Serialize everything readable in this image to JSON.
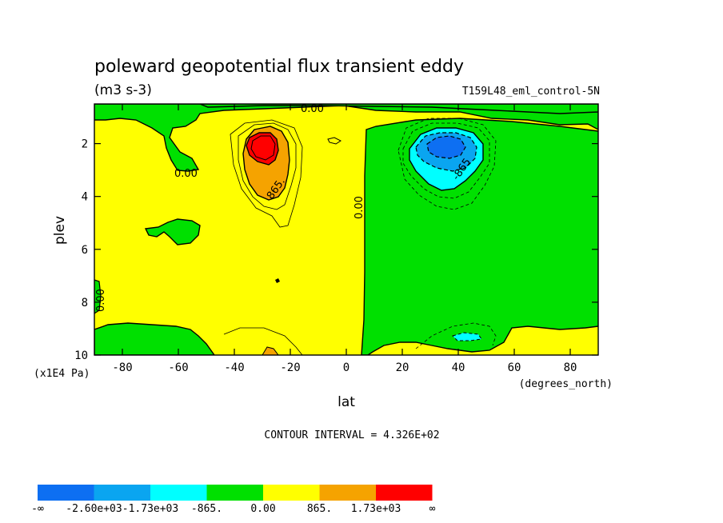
{
  "chart_data": {
    "type": "contour",
    "title": "poleward geopotential flux transient eddy",
    "units": "(m3 s-3)",
    "dataset": "T159L48_eml_control-5N",
    "xlabel": "lat",
    "x_units": "(degrees_north)",
    "ylabel": "plev",
    "y_units": "(x1E4 Pa)",
    "xlim": [
      -90,
      90
    ],
    "ylim": [
      10,
      0.5
    ],
    "x_ticks": [
      "-80",
      "-60",
      "-40",
      "-20",
      "0",
      "20",
      "40",
      "60",
      "80"
    ],
    "x_tick_values": [
      -80,
      -60,
      -40,
      -20,
      0,
      20,
      40,
      60,
      80
    ],
    "y_ticks": [
      "2",
      "4",
      "6",
      "8",
      "10"
    ],
    "y_tick_values": [
      2,
      4,
      6,
      8,
      10
    ],
    "contour_interval": "CONTOUR INTERVAL = 4.326E+02",
    "contour_labels": [
      "0.00",
      "0.00",
      "0.00",
      "0.00",
      "865.",
      "-865"
    ],
    "features": [
      {
        "sign": "positive",
        "center_lat": -30,
        "center_plev": 1.8,
        "max_level": "1.73e+03"
      },
      {
        "sign": "negative",
        "center_lat": 35,
        "center_plev": 1.8,
        "min_level": "-2.60e+03"
      }
    ],
    "colorbar": {
      "colors": [
        "#0d6ff2",
        "#0aa5f0",
        "#00ffff",
        "#00e000",
        "#ffff00",
        "#f5a300",
        "#ff0000"
      ],
      "labels": [
        "-∞",
        "-2.60e+03",
        "-1.73e+03",
        "-865.",
        "0.00",
        "865.",
        "1.73e+03",
        "∞"
      ]
    }
  }
}
